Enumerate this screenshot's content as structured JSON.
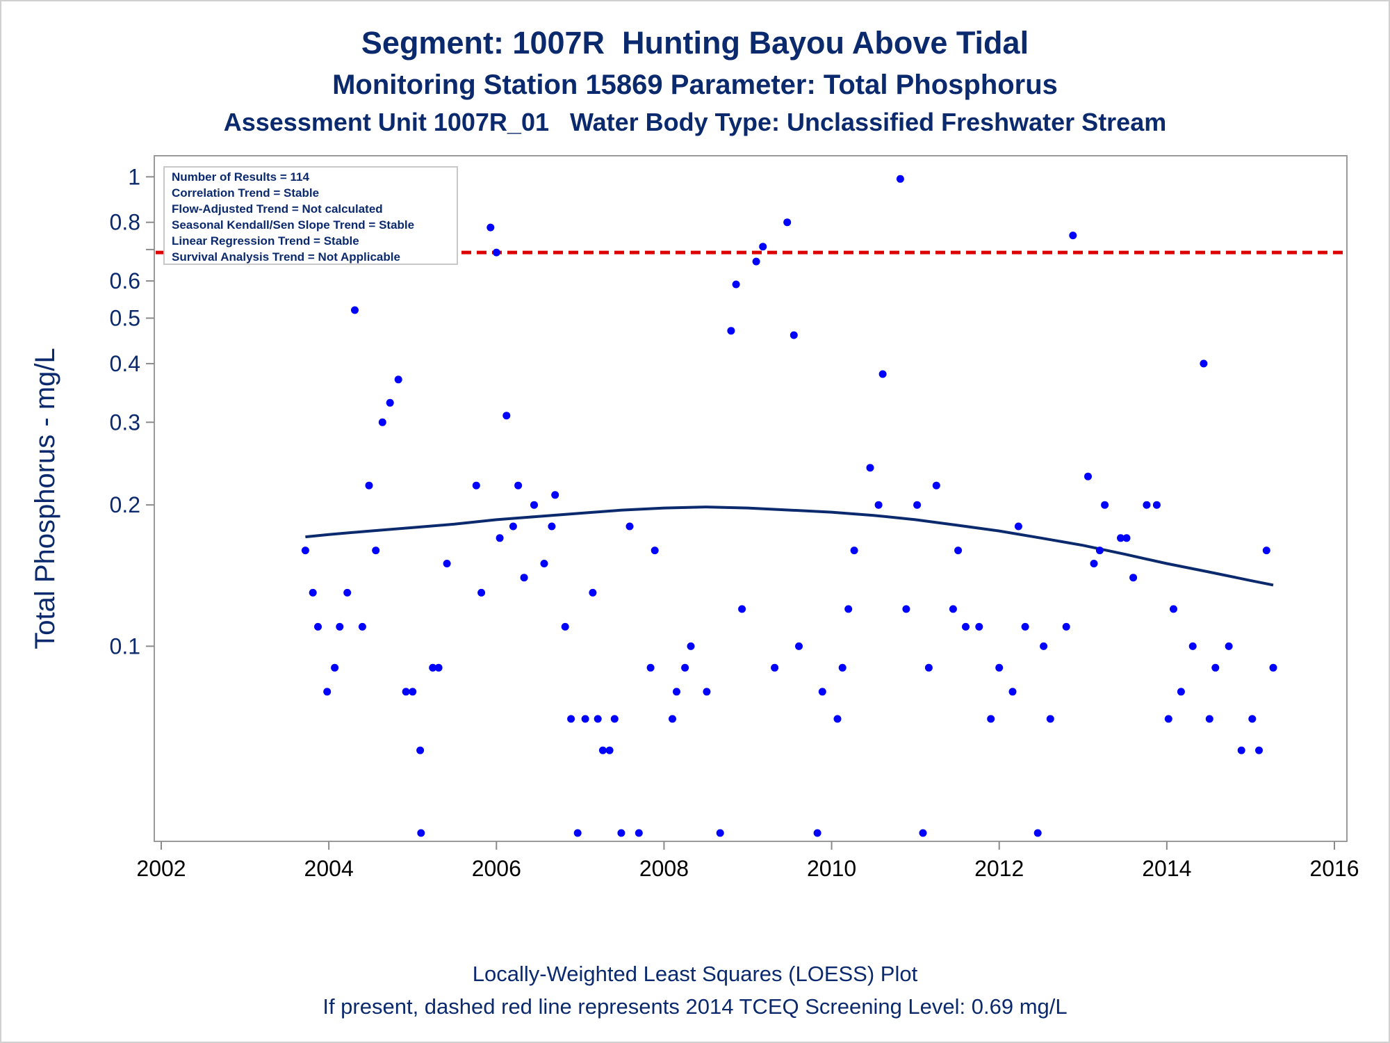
{
  "chart_data": {
    "type": "scatter",
    "title": "Segment: 1007R  Hunting Bayou Above Tidal",
    "subtitle": "Monitoring Station 15869 Parameter: Total Phosphorus",
    "subtitle2": "Assessment Unit 1007R_01   Water Body Type: Unclassified Freshwater Stream",
    "ylabel": "Total Phosphorus - mg/L",
    "xlabel": "",
    "xlim": [
      2002,
      2016
    ],
    "ylim": [
      0.04,
      1.05
    ],
    "y_scale": "log",
    "x_ticks": [
      "2002",
      "2004",
      "2006",
      "2008",
      "2010",
      "2012",
      "2014",
      "2016"
    ],
    "y_ticks": [
      "0.1",
      "0.2",
      "0.3",
      "0.4",
      "0.5",
      "0.6",
      "0.8",
      "1"
    ],
    "stats_box": [
      "Number of Results = 114",
      "Correlation Trend = Stable",
      "Flow-Adjusted Trend = Not calculated",
      "Seasonal Kendall/Sen Slope Trend = Stable",
      "Linear Regression Trend = Stable",
      "Survival Analysis Trend = Not Applicable"
    ],
    "footnotes": [
      "Locally-Weighted Least Squares (LOESS) Plot",
      "If present, dashed red line represents 2014 TCEQ Screening Level: 0.69 mg/L"
    ],
    "screening_level": 0.69,
    "colors": {
      "points": "#0000ff",
      "loess": "#0b2a6e",
      "screening": "#dd0000",
      "text": "#0b2a6e"
    },
    "points": {
      "x": [
        2003.72,
        2003.81,
        2003.87,
        2003.98,
        2004.07,
        2004.13,
        2004.22,
        2004.31,
        2004.4,
        2004.48,
        2004.56,
        2004.64,
        2004.73,
        2004.83,
        2004.92,
        2005.0,
        2005.09,
        2005.1,
        2005.24,
        2005.31,
        2005.41,
        2005.76,
        2005.82,
        2005.93,
        2006.0,
        2006.04,
        2006.12,
        2006.2,
        2006.26,
        2006.33,
        2006.45,
        2006.57,
        2006.66,
        2006.7,
        2006.82,
        2006.89,
        2006.97,
        2007.06,
        2007.15,
        2007.21,
        2007.27,
        2007.35,
        2007.41,
        2007.49,
        2007.59,
        2007.7,
        2007.84,
        2007.89,
        2008.1,
        2008.15,
        2008.25,
        2008.32,
        2008.51,
        2008.67,
        2008.8,
        2008.86,
        2008.93,
        2009.1,
        2009.18,
        2009.32,
        2009.47,
        2009.55,
        2009.61,
        2009.83,
        2009.89,
        2010.07,
        2010.13,
        2010.2,
        2010.27,
        2010.46,
        2010.56,
        2010.61,
        2010.82,
        2010.89,
        2011.02,
        2011.09,
        2011.16,
        2011.25,
        2011.45,
        2011.51,
        2011.6,
        2011.76,
        2011.9,
        2012.0,
        2012.16,
        2012.23,
        2012.31,
        2012.46,
        2012.53,
        2012.61,
        2012.8,
        2012.88,
        2013.06,
        2013.13,
        2013.2,
        2013.26,
        2013.45,
        2013.52,
        2013.6,
        2013.76,
        2013.88,
        2014.02,
        2014.08,
        2014.17,
        2014.31,
        2014.44,
        2014.51,
        2014.58,
        2014.74,
        2014.89,
        2015.02,
        2015.1,
        2015.19,
        2015.27
      ],
      "y": [
        0.16,
        0.13,
        0.11,
        0.08,
        0.09,
        0.11,
        0.13,
        0.52,
        0.11,
        0.22,
        0.16,
        0.3,
        0.33,
        0.37,
        0.08,
        0.08,
        0.06,
        0.04,
        0.09,
        0.09,
        0.15,
        0.22,
        0.13,
        0.78,
        0.69,
        0.17,
        0.31,
        0.18,
        0.22,
        0.14,
        0.2,
        0.15,
        0.18,
        0.21,
        0.11,
        0.07,
        0.04,
        0.07,
        0.13,
        0.07,
        0.06,
        0.06,
        0.07,
        0.04,
        0.18,
        0.04,
        0.09,
        0.16,
        0.07,
        0.08,
        0.09,
        0.1,
        0.08,
        0.04,
        0.47,
        0.59,
        0.12,
        0.66,
        0.71,
        0.09,
        0.8,
        0.46,
        0.1,
        0.04,
        0.08,
        0.07,
        0.09,
        0.12,
        0.16,
        0.24,
        0.2,
        0.38,
        0.99,
        0.12,
        0.2,
        0.04,
        0.09,
        0.22,
        0.12,
        0.16,
        0.11,
        0.11,
        0.07,
        0.09,
        0.08,
        0.18,
        0.11,
        0.04,
        0.1,
        0.07,
        0.11,
        0.75,
        0.23,
        0.15,
        0.16,
        0.2,
        0.17,
        0.17,
        0.14,
        0.2,
        0.2,
        0.07,
        0.12,
        0.08,
        0.1,
        0.4,
        0.07,
        0.09,
        0.1,
        0.06,
        0.07,
        0.06,
        0.16,
        0.09
      ]
    },
    "loess": {
      "x": [
        2003.72,
        2004.0,
        2004.5,
        2005.0,
        2005.5,
        2006.0,
        2006.5,
        2007.0,
        2007.5,
        2008.0,
        2008.5,
        2009.0,
        2009.5,
        2010.0,
        2010.5,
        2011.0,
        2011.5,
        2012.0,
        2012.5,
        2013.0,
        2013.5,
        2014.0,
        2014.5,
        2015.0,
        2015.27
      ],
      "y": [
        0.171,
        0.173,
        0.176,
        0.179,
        0.182,
        0.186,
        0.189,
        0.192,
        0.195,
        0.197,
        0.198,
        0.197,
        0.195,
        0.193,
        0.19,
        0.186,
        0.181,
        0.176,
        0.17,
        0.164,
        0.157,
        0.15,
        0.144,
        0.138,
        0.135
      ]
    }
  }
}
